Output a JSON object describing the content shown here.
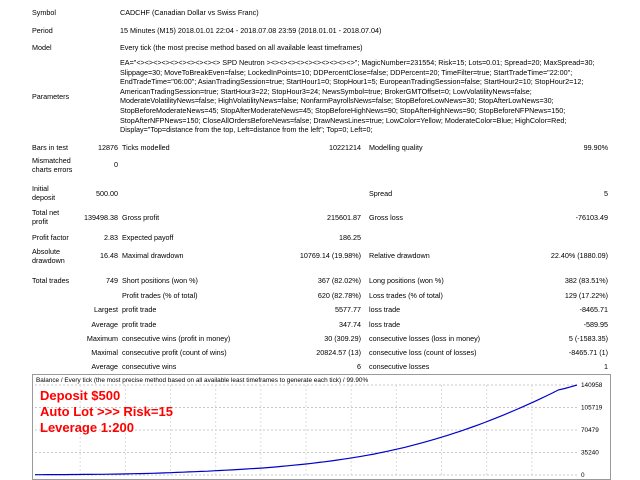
{
  "header": {
    "symbol_label": "Symbol",
    "symbol_value": "CADCHF (Canadian Dollar vs Swiss Franc)",
    "period_label": "Period",
    "period_value": "15 Minutes (M15) 2018.01.01 22:04 - 2018.07.08 23:59 (2018.01.01 - 2018.07.04)",
    "model_label": "Model",
    "model_value": "Every tick (the most precise method based on all available least timeframes)",
    "parameters_label": "Parameters",
    "parameters_value": "EA=\"<><><><><><><><><><> SPD Neutron ><><><><><><><><><><>\"; MagicNumber=231554; Risk=15; Lots=0.01; Spread=20; MaxSpread=30; Slippage=30; MoveToBreakEven=false; LockedInPoints=10; DDPercentClose=false; DDPercent=20; TimeFilter=true; StartTradeTime=\"22:00\"; EndTradeTime=\"06:00\"; AsianTradingSession=true; StartHour1=0; StopHour1=5; EuropeanTradingSession=false; StartHour2=10; StopHour2=12; AmericanTradingSession=true; StartHour3=22; StopHour3=24; NewsSymbol=true; BrokerGMTOffset=0; LowVolatilityNews=false; ModerateVolatilityNews=false; HighVolatilityNews=false; NonfarmPayrollsNews=false; StopBeforeLowNews=30; StopAfterLowNews=30; StopBeforeModerateNews=45; StopAfterModerateNews=45; StopBeforeHighNews=90; StopAfterHighNews=90; StopBeforeNFPNews=150; StopAfterNFPNews=150; CloseAllOrdersBeforeNews=false; DrawNewsLines=true; LowColor=Yellow; ModerateColor=Blue; HighColor=Red; Display=\"Top=distance from the top, Left=distance from the left\"; Top=0; Left=0;"
  },
  "stats": {
    "bars_label": "Bars in test",
    "bars_value": "12876",
    "ticks_label": "Ticks modelled",
    "ticks_value": "10221214",
    "quality_label": "Modelling quality",
    "quality_value": "99.90%",
    "mismatch_label_1": "Mismatched",
    "mismatch_label_2": "charts errors",
    "mismatch_value": "0",
    "deposit_label_1": "Initial",
    "deposit_label_2": "deposit",
    "deposit_value": "500.00",
    "spread_label": "Spread",
    "spread_value": "5",
    "netprofit_label_1": "Total net",
    "netprofit_label_2": "profit",
    "netprofit_value": "139498.38",
    "grossprofit_label": "Gross profit",
    "grossprofit_value": "215601.87",
    "grossloss_label": "Gross loss",
    "grossloss_value": "-76103.49",
    "pf_label": "Profit factor",
    "pf_value": "2.83",
    "payoff_label": "Expected payoff",
    "payoff_value": "186.25",
    "absdd_label_1": "Absolute",
    "absdd_label_2": "drawdown",
    "absdd_value": "16.48",
    "maxdd_label": "Maximal drawdown",
    "maxdd_value": "10769.14 (19.98%)",
    "reldd_label": "Relative drawdown",
    "reldd_value": "22.40% (1880.09)",
    "trades_label": "Total trades",
    "trades_value": "749",
    "short_label": "Short positions (won %)",
    "short_value": "367 (82.02%)",
    "long_label": "Long positions (won %)",
    "long_value": "382 (83.51%)",
    "profit_trades_label": "Profit trades (% of total)",
    "profit_trades_value": "620 (82.78%)",
    "loss_trades_label": "Loss trades (% of total)",
    "loss_trades_value": "129 (17.22%)",
    "largest_label": "Largest",
    "largest_profit_label": "profit trade",
    "largest_profit_value": "5577.77",
    "largest_loss_label": "loss trade",
    "largest_loss_value": "-8465.71",
    "average_label": "Average",
    "average_profit_label": "profit trade",
    "average_profit_value": "347.74",
    "average_loss_label": "loss trade",
    "average_loss_value": "-589.95",
    "maximum_label": "Maximum",
    "max_cw_label": "consecutive wins (profit in money)",
    "max_cw_value": "30 (309.29)",
    "max_cl_label": "consecutive losses (loss in money)",
    "max_cl_value": "5 (-1583.35)",
    "maximal_label": "Maximal",
    "maximal_cp_label": "consecutive profit (count of wins)",
    "maximal_cp_value": "20824.57 (13)",
    "maximal_cl_label": "consecutive loss (count of losses)",
    "maximal_cl_value": "-8465.71 (1)",
    "avg_label": "Average",
    "avg_cw_label": "consecutive wins",
    "avg_cw_value": "6",
    "avg_cl_label": "consecutive losses",
    "avg_cl_value": "1"
  },
  "chart": {
    "title": "Balance / Every tick (the most precise method based on all available least timeframes to generate each tick) / 99.90%",
    "overlay_line1": "Deposit $500",
    "overlay_line2": "Auto Lot  >>> Risk=15",
    "overlay_line3": "Leverage 1:200",
    "line_color": "#0000cc",
    "overlay_color": "#ff0000"
  },
  "chart_data": {
    "type": "line",
    "series": [
      {
        "values": [
          500,
          520,
          560,
          600,
          650,
          700,
          760,
          820,
          880,
          950,
          1050,
          1150,
          1300,
          1450,
          1600,
          1800,
          2000,
          2200,
          2400,
          2700,
          3000,
          3300,
          3600,
          4000,
          4400,
          4800,
          5200,
          5600,
          6000,
          6500,
          7000,
          7500,
          8000,
          8600,
          9200,
          9800,
          10400,
          11000,
          11800,
          12600,
          13500,
          14400,
          15300,
          16300,
          17300,
          18400,
          19500,
          20700,
          22000,
          23300,
          24700,
          26200,
          27700,
          29300,
          31000,
          32800,
          34700,
          36700,
          38800,
          41000,
          43300,
          45700,
          48200,
          50800,
          53500,
          56300,
          59200,
          62200,
          65300,
          68500,
          71800,
          75200,
          78700,
          82300,
          86000,
          89800,
          93700,
          97700,
          101800,
          106000,
          110300,
          114700,
          119200,
          123800,
          128500,
          133300,
          135500,
          138200,
          140958
        ]
      }
    ],
    "yticks": [
      "140958",
      "105719",
      "70479",
      "35240",
      "0"
    ],
    "ylim": [
      0,
      140958
    ]
  }
}
